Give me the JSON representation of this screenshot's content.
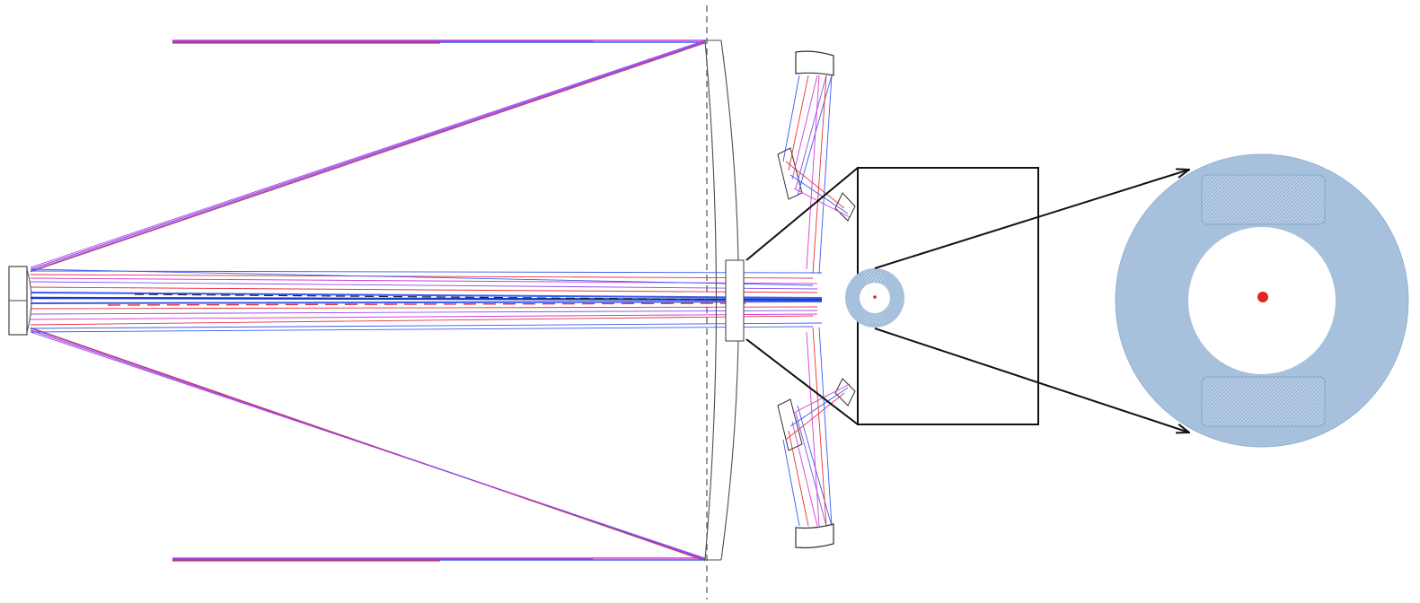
{
  "diagram": {
    "kind": "optical ray-trace layout with magnified detector inset",
    "colors": {
      "ray_blue": "#3a5cf0",
      "ray_red": "#e8323c",
      "ray_magenta": "#d43cd8",
      "ray_violet": "#8a4df0",
      "outline": "#4d4d4d",
      "callout": "#111111",
      "detector_fill": "#a7c1dd",
      "detector_hatch": "#7f9fc7",
      "spot": "#e0271d",
      "axis_dash": "#555555"
    },
    "components": [
      {
        "id": "entrance-beam-top",
        "icon": "collimated-beam"
      },
      {
        "id": "entrance-beam-bottom",
        "icon": "collimated-beam"
      },
      {
        "id": "secondary-mirror",
        "icon": "small-mirror"
      },
      {
        "id": "primary-corrector-lens",
        "icon": "meniscus-lens"
      },
      {
        "id": "folding-mirror-upper",
        "icon": "curved-mirror"
      },
      {
        "id": "folding-mirror-lower",
        "icon": "curved-mirror"
      },
      {
        "id": "detector-plane",
        "icon": "circular-detector"
      },
      {
        "id": "zoom-frame",
        "icon": "inset-box"
      },
      {
        "id": "detector-magnified",
        "icon": "circular-detector"
      }
    ]
  }
}
